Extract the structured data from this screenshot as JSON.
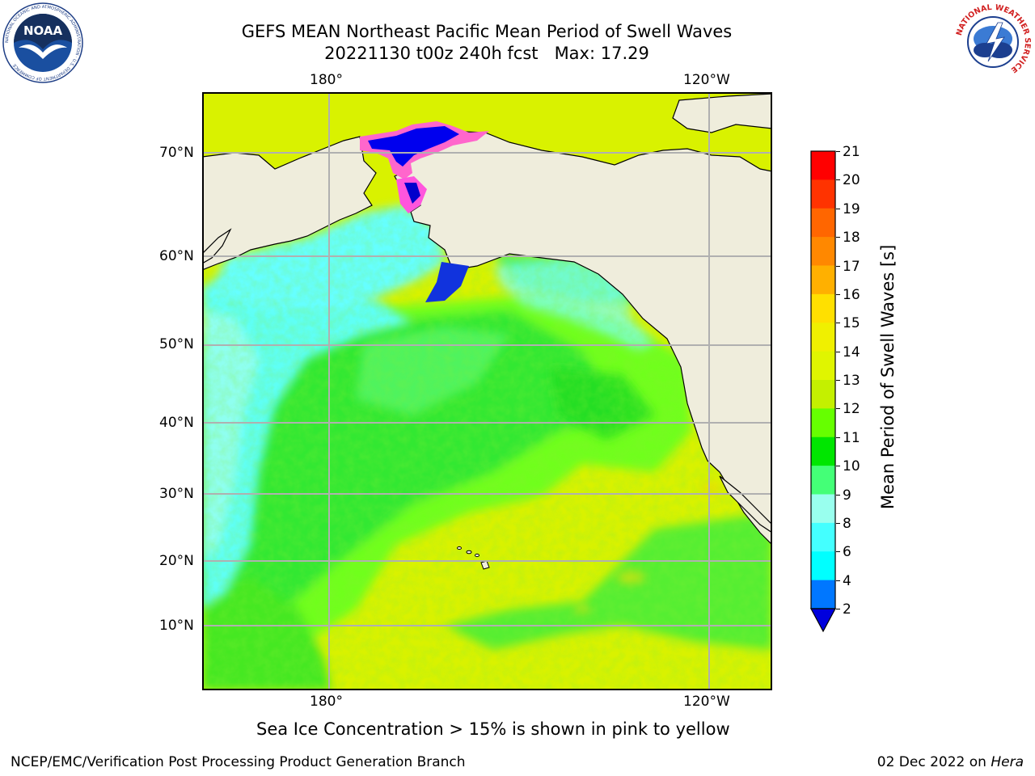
{
  "title": {
    "line1": "GEFS MEAN Northeast Pacific Mean Period of Swell Waves",
    "line2": "20221130 t00z 240h fcst   Max: 17.29"
  },
  "map": {
    "lon_labels_top": [
      "180°",
      "120°W"
    ],
    "lon_labels_bottom": [
      "180°",
      "120°W"
    ],
    "lat_labels": [
      "70°N",
      "60°N",
      "50°N",
      "40°N",
      "30°N",
      "20°N",
      "10°N"
    ],
    "gridlines": true,
    "land_color": "#efeddc",
    "coast_color": "#000000",
    "grid_color": "#b0b0b0"
  },
  "colorbar": {
    "title": "Mean Period of Swell Waves [s]",
    "ticks": [
      "21",
      "20",
      "19",
      "18",
      "17",
      "16",
      "15",
      "14",
      "13",
      "12",
      "11",
      "10",
      "9",
      "8",
      "6",
      "4",
      "2"
    ],
    "colors": [
      "#ff0000",
      "#ff3300",
      "#ff6600",
      "#ff8800",
      "#ffb000",
      "#ffe000",
      "#f0f000",
      "#e0f500",
      "#c4f000",
      "#66ff00",
      "#00e600",
      "#44ff77",
      "#99ffee",
      "#44ffff",
      "#00ffff",
      "#0077ff",
      "#0000dd"
    ]
  },
  "caption": "Sea Ice Concentration > 15% is shown in pink to yellow",
  "footer": {
    "left": "NCEP/EMC/Verification Post Processing Product Generation Branch",
    "right_date": "02 Dec 2022 on ",
    "right_machine": "Hera"
  },
  "logos": {
    "noaa_text": "NOAA",
    "noaa_ring_text": "NATIONAL OCEANIC AND ATMOSPHERIC ADMINISTRATION · U.S. DEPARTMENT OF COMMERCE",
    "nws_ring_text": "NATIONAL WEATHER SERVICE"
  }
}
